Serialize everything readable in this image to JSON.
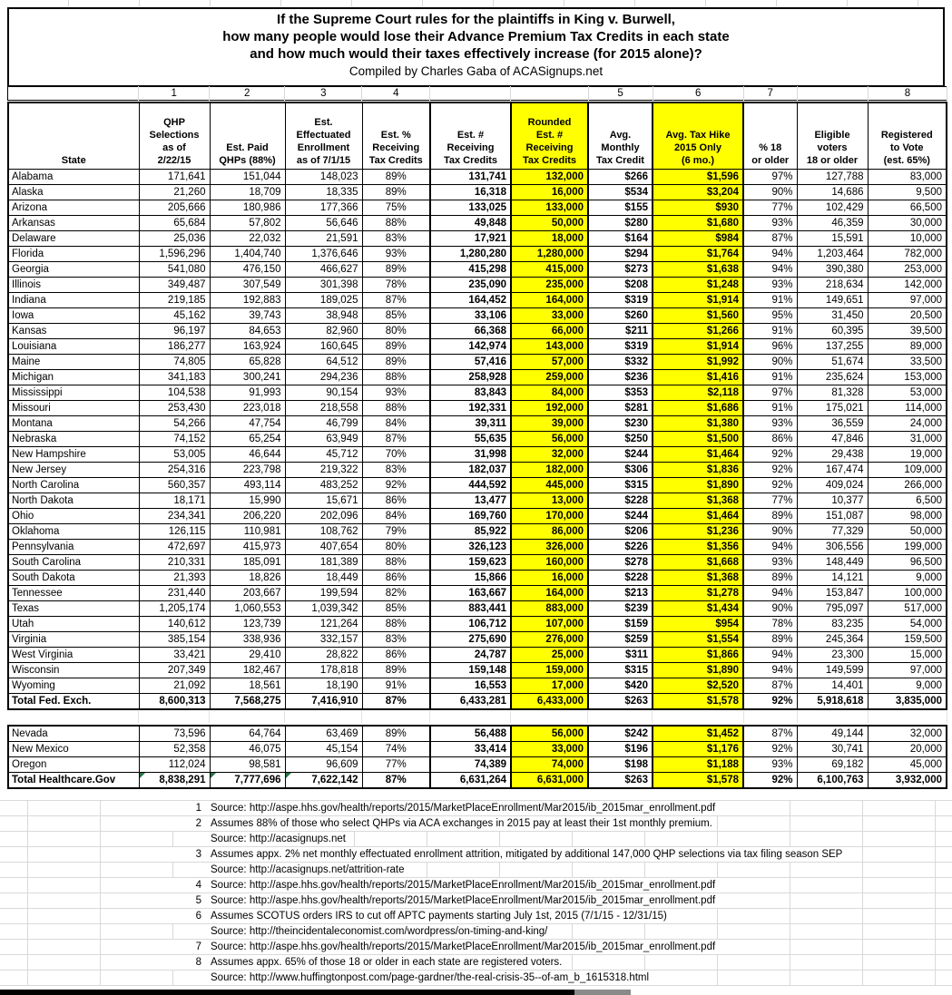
{
  "page": {
    "highlight": "#ffff00",
    "grid_color": "#d9d9d9",
    "flag_color": "#217346"
  },
  "title": {
    "line1": "If the Supreme Court rules for the plaintiffs in King v. Burwell,",
    "line2": "how many people would lose their Advance Premium Tax Credits in each state",
    "line3": "and how much would their taxes effectively increase (for 2015 alone)?",
    "subtitle": "Compiled by Charles Gaba of ACASignups.net"
  },
  "table": {
    "column_numbers": [
      "",
      "1",
      "2",
      "3",
      "4",
      "",
      "",
      "5",
      "6",
      "7",
      "",
      "8"
    ],
    "headers": [
      "State",
      "QHP\nSelections\nas of\n2/22/15",
      "Est. Paid\nQHPs (88%)",
      "Est.\nEffectuated\nEnrollment\nas of 7/1/15",
      "Est. %\nReceiving\nTax Credits",
      "Est. #\nReceiving\nTax Credits",
      "Rounded\nEst. #\nReceiving\nTax Credits",
      "Avg.\nMonthly\nTax Credit",
      "Avg. Tax Hike\n2015 Only\n(6 mo.)",
      "% 18\nor older",
      "Eligible\nvoters\n18 or older",
      "Registered\nto Vote\n(est. 65%)"
    ],
    "yellow_columns": [
      6,
      8
    ],
    "bold_columns": [
      5,
      6,
      7,
      8
    ],
    "rows": [
      [
        "Alabama",
        "171,641",
        "151,044",
        "148,023",
        "89%",
        "131,741",
        "132,000",
        "$266",
        "$1,596",
        "97%",
        "127,788",
        "83,000"
      ],
      [
        "Alaska",
        "21,260",
        "18,709",
        "18,335",
        "89%",
        "16,318",
        "16,000",
        "$534",
        "$3,204",
        "90%",
        "14,686",
        "9,500"
      ],
      [
        "Arizona",
        "205,666",
        "180,986",
        "177,366",
        "75%",
        "133,025",
        "133,000",
        "$155",
        "$930",
        "77%",
        "102,429",
        "66,500"
      ],
      [
        "Arkansas",
        "65,684",
        "57,802",
        "56,646",
        "88%",
        "49,848",
        "50,000",
        "$280",
        "$1,680",
        "93%",
        "46,359",
        "30,000"
      ],
      [
        "Delaware",
        "25,036",
        "22,032",
        "21,591",
        "83%",
        "17,921",
        "18,000",
        "$164",
        "$984",
        "87%",
        "15,591",
        "10,000"
      ],
      [
        "Florida",
        "1,596,296",
        "1,404,740",
        "1,376,646",
        "93%",
        "1,280,280",
        "1,280,000",
        "$294",
        "$1,764",
        "94%",
        "1,203,464",
        "782,000"
      ],
      [
        "Georgia",
        "541,080",
        "476,150",
        "466,627",
        "89%",
        "415,298",
        "415,000",
        "$273",
        "$1,638",
        "94%",
        "390,380",
        "253,000"
      ],
      [
        "Illinois",
        "349,487",
        "307,549",
        "301,398",
        "78%",
        "235,090",
        "235,000",
        "$208",
        "$1,248",
        "93%",
        "218,634",
        "142,000"
      ],
      [
        "Indiana",
        "219,185",
        "192,883",
        "189,025",
        "87%",
        "164,452",
        "164,000",
        "$319",
        "$1,914",
        "91%",
        "149,651",
        "97,000"
      ],
      [
        "Iowa",
        "45,162",
        "39,743",
        "38,948",
        "85%",
        "33,106",
        "33,000",
        "$260",
        "$1,560",
        "95%",
        "31,450",
        "20,500"
      ],
      [
        "Kansas",
        "96,197",
        "84,653",
        "82,960",
        "80%",
        "66,368",
        "66,000",
        "$211",
        "$1,266",
        "91%",
        "60,395",
        "39,500"
      ],
      [
        "Louisiana",
        "186,277",
        "163,924",
        "160,645",
        "89%",
        "142,974",
        "143,000",
        "$319",
        "$1,914",
        "96%",
        "137,255",
        "89,000"
      ],
      [
        "Maine",
        "74,805",
        "65,828",
        "64,512",
        "89%",
        "57,416",
        "57,000",
        "$332",
        "$1,992",
        "90%",
        "51,674",
        "33,500"
      ],
      [
        "Michigan",
        "341,183",
        "300,241",
        "294,236",
        "88%",
        "258,928",
        "259,000",
        "$236",
        "$1,416",
        "91%",
        "235,624",
        "153,000"
      ],
      [
        "Mississippi",
        "104,538",
        "91,993",
        "90,154",
        "93%",
        "83,843",
        "84,000",
        "$353",
        "$2,118",
        "97%",
        "81,328",
        "53,000"
      ],
      [
        "Missouri",
        "253,430",
        "223,018",
        "218,558",
        "88%",
        "192,331",
        "192,000",
        "$281",
        "$1,686",
        "91%",
        "175,021",
        "114,000"
      ],
      [
        "Montana",
        "54,266",
        "47,754",
        "46,799",
        "84%",
        "39,311",
        "39,000",
        "$230",
        "$1,380",
        "93%",
        "36,559",
        "24,000"
      ],
      [
        "Nebraska",
        "74,152",
        "65,254",
        "63,949",
        "87%",
        "55,635",
        "56,000",
        "$250",
        "$1,500",
        "86%",
        "47,846",
        "31,000"
      ],
      [
        "New Hampshire",
        "53,005",
        "46,644",
        "45,712",
        "70%",
        "31,998",
        "32,000",
        "$244",
        "$1,464",
        "92%",
        "29,438",
        "19,000"
      ],
      [
        "New Jersey",
        "254,316",
        "223,798",
        "219,322",
        "83%",
        "182,037",
        "182,000",
        "$306",
        "$1,836",
        "92%",
        "167,474",
        "109,000"
      ],
      [
        "North Carolina",
        "560,357",
        "493,114",
        "483,252",
        "92%",
        "444,592",
        "445,000",
        "$315",
        "$1,890",
        "92%",
        "409,024",
        "266,000"
      ],
      [
        "North Dakota",
        "18,171",
        "15,990",
        "15,671",
        "86%",
        "13,477",
        "13,000",
        "$228",
        "$1,368",
        "77%",
        "10,377",
        "6,500"
      ],
      [
        "Ohio",
        "234,341",
        "206,220",
        "202,096",
        "84%",
        "169,760",
        "170,000",
        "$244",
        "$1,464",
        "89%",
        "151,087",
        "98,000"
      ],
      [
        "Oklahoma",
        "126,115",
        "110,981",
        "108,762",
        "79%",
        "85,922",
        "86,000",
        "$206",
        "$1,236",
        "90%",
        "77,329",
        "50,000"
      ],
      [
        "Pennsylvania",
        "472,697",
        "415,973",
        "407,654",
        "80%",
        "326,123",
        "326,000",
        "$226",
        "$1,356",
        "94%",
        "306,556",
        "199,000"
      ],
      [
        "South Carolina",
        "210,331",
        "185,091",
        "181,389",
        "88%",
        "159,623",
        "160,000",
        "$278",
        "$1,668",
        "93%",
        "148,449",
        "96,500"
      ],
      [
        "South Dakota",
        "21,393",
        "18,826",
        "18,449",
        "86%",
        "15,866",
        "16,000",
        "$228",
        "$1,368",
        "89%",
        "14,121",
        "9,000"
      ],
      [
        "Tennessee",
        "231,440",
        "203,667",
        "199,594",
        "82%",
        "163,667",
        "164,000",
        "$213",
        "$1,278",
        "94%",
        "153,847",
        "100,000"
      ],
      [
        "Texas",
        "1,205,174",
        "1,060,553",
        "1,039,342",
        "85%",
        "883,441",
        "883,000",
        "$239",
        "$1,434",
        "90%",
        "795,097",
        "517,000"
      ],
      [
        "Utah",
        "140,612",
        "123,739",
        "121,264",
        "88%",
        "106,712",
        "107,000",
        "$159",
        "$954",
        "78%",
        "83,235",
        "54,000"
      ],
      [
        "Virginia",
        "385,154",
        "338,936",
        "332,157",
        "83%",
        "275,690",
        "276,000",
        "$259",
        "$1,554",
        "89%",
        "245,364",
        "159,500"
      ],
      [
        "West Virginia",
        "33,421",
        "29,410",
        "28,822",
        "86%",
        "24,787",
        "25,000",
        "$311",
        "$1,866",
        "94%",
        "23,300",
        "15,000"
      ],
      [
        "Wisconsin",
        "207,349",
        "182,467",
        "178,818",
        "89%",
        "159,148",
        "159,000",
        "$315",
        "$1,890",
        "94%",
        "149,599",
        "97,000"
      ],
      [
        "Wyoming",
        "21,092",
        "18,561",
        "18,190",
        "91%",
        "16,553",
        "17,000",
        "$420",
        "$2,520",
        "87%",
        "14,401",
        "9,000"
      ]
    ],
    "total_row": [
      "Total Fed. Exch.",
      "8,600,313",
      "7,568,275",
      "7,416,910",
      "87%",
      "6,433,281",
      "6,433,000",
      "$263",
      "$1,578",
      "92%",
      "5,918,618",
      "3,835,000"
    ],
    "second_rows": [
      [
        "Nevada",
        "73,596",
        "64,764",
        "63,469",
        "89%",
        "56,488",
        "56,000",
        "$242",
        "$1,452",
        "87%",
        "49,144",
        "32,000"
      ],
      [
        "New Mexico",
        "52,358",
        "46,075",
        "45,154",
        "74%",
        "33,414",
        "33,000",
        "$196",
        "$1,176",
        "92%",
        "30,741",
        "20,000"
      ],
      [
        "Oregon",
        "112,024",
        "98,581",
        "96,609",
        "77%",
        "74,389",
        "74,000",
        "$198",
        "$1,188",
        "93%",
        "69,182",
        "45,000"
      ]
    ],
    "second_total_row": [
      "Total Healthcare.Gov",
      "8,838,291",
      "7,777,696",
      "7,622,142",
      "87%",
      "6,631,264",
      "6,631,000",
      "$263",
      "$1,578",
      "92%",
      "6,100,763",
      "3,932,000"
    ],
    "second_total_flag_cols": [
      1,
      2,
      3
    ]
  },
  "footnotes": [
    {
      "num": "1",
      "text": "Source: http://aspe.hhs.gov/health/reports/2015/MarketPlaceEnrollment/Mar2015/ib_2015mar_enrollment.pdf"
    },
    {
      "num": "2",
      "text": "Assumes 88% of those who select QHPs via ACA exchanges in 2015 pay at least their 1st monthly premium."
    },
    {
      "num": "",
      "text": "Source: http://acasignups.net"
    },
    {
      "num": "3",
      "text": "Assumes appx. 2% net monthly effectuated enrollment attrition, mitigated by additional 147,000 QHP selections via tax filing season SEP"
    },
    {
      "num": "",
      "text": "Source: http://acasignups.net/attrition-rate"
    },
    {
      "num": "4",
      "text": "Source: http://aspe.hhs.gov/health/reports/2015/MarketPlaceEnrollment/Mar2015/ib_2015mar_enrollment.pdf"
    },
    {
      "num": "5",
      "text": "Source: http://aspe.hhs.gov/health/reports/2015/MarketPlaceEnrollment/Mar2015/ib_2015mar_enrollment.pdf"
    },
    {
      "num": "6",
      "text": "Assumes SCOTUS orders IRS to cut off APTC payments starting July 1st, 2015 (7/1/15 - 12/31/15)"
    },
    {
      "num": "",
      "text": "Source: http://theincidentaleconomist.com/wordpress/on-timing-and-king/"
    },
    {
      "num": "7",
      "text": "Source: http://aspe.hhs.gov/health/reports/2015/MarketPlaceEnrollment/Mar2015/ib_2015mar_enrollment.pdf"
    },
    {
      "num": "8",
      "text": "Assumes appx. 65% of those 18 or older in each state are registered voters."
    },
    {
      "num": "",
      "text": "Source: http://www.huffingtonpost.com/page-gardner/the-real-crisis-35--of-am_b_1615318.html"
    }
  ]
}
